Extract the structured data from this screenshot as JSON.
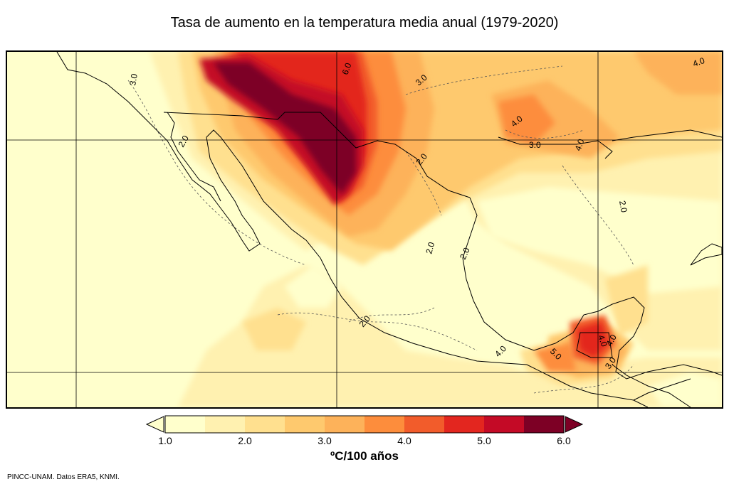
{
  "title": "Tasa de aumento en la temperatura media anual (1979-2020)",
  "colorbar": {
    "colors": [
      "#ffffcc",
      "#fff1b0",
      "#ffe08f",
      "#fec96e",
      "#fdb25a",
      "#fd8d3c",
      "#f25c2b",
      "#e3261f",
      "#c40a26",
      "#7d0025"
    ],
    "under_color": "#ffffcc",
    "over_color": "#7d0025",
    "tick_labels": [
      "1.0",
      "2.0",
      "3.0",
      "4.0",
      "5.0",
      "6.0"
    ],
    "units": "ºC/100 años"
  },
  "contour_labels": [
    "3.0",
    "6.0",
    "3.0",
    "4.0",
    "4.0",
    "3.0",
    "4.0",
    "2.0",
    "2.0",
    "2.0",
    "2.0",
    "2.0",
    "2.0",
    "4.0",
    "5.0",
    "4.0",
    "3.0",
    "4.0"
  ],
  "credit": "PINCC-UNAM. Datos ERA5, KNMI."
}
